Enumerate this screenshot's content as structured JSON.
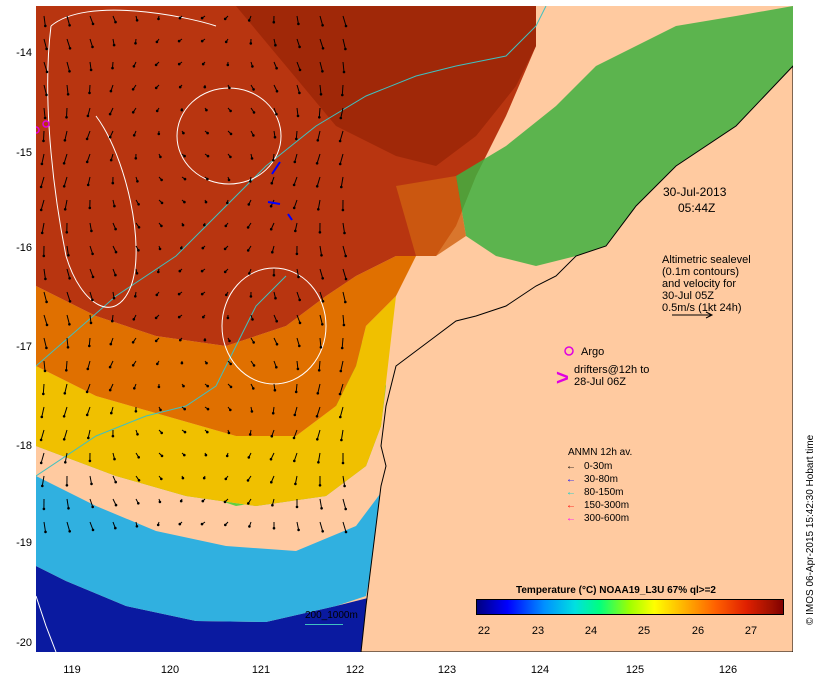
{
  "map": {
    "date": "30-Jul-2013",
    "time": "05:44Z",
    "y_ticks": [
      "-14",
      "-15",
      "-16",
      "-17",
      "-18",
      "-19",
      "-20"
    ],
    "x_ticks": [
      "119",
      "120",
      "121",
      "122",
      "123",
      "124",
      "125",
      "126"
    ],
    "lon_range": [
      118.6,
      126.7
    ],
    "lat_range": [
      -20.1,
      -13.45
    ]
  },
  "altimetry": {
    "lines": [
      "Altimetric sealevel",
      "(0.1m contours)",
      "and velocity for",
      "30-Jul 05Z",
      "0.5m/s (1kt 24h)"
    ]
  },
  "argo": {
    "label": "Argo",
    "color": "#e000e0"
  },
  "drifters": {
    "lines": [
      "drifters@12h to",
      "28-Jul 06Z"
    ],
    "color": "#e000e0"
  },
  "anmn": {
    "title": "ANMN 12h av.",
    "items": [
      {
        "label": "0-30m",
        "color": "#000000"
      },
      {
        "label": "30-80m",
        "color": "#0000ff"
      },
      {
        "label": "80-150m",
        "color": "#00d0d0"
      },
      {
        "label": "150-300m",
        "color": "#ff0000"
      },
      {
        "label": "300-600m",
        "color": "#ff00ff"
      }
    ]
  },
  "scale_bar": {
    "label": "200_1000m",
    "color": "#40c0c0"
  },
  "colorbar": {
    "title": "Temperature (°C) NOAA19_L3U 67% ql>=2",
    "ticks": [
      "22",
      "23",
      "24",
      "25",
      "26",
      "27"
    ]
  },
  "credit": "© IMOS 06-Apr-2015 15:42:30 Hobart time",
  "colors": {
    "land": "#ffcaa0",
    "warm": "#b42f10",
    "mid": "#f0a000",
    "cool": "#20c060",
    "cold": "#0010a0"
  }
}
